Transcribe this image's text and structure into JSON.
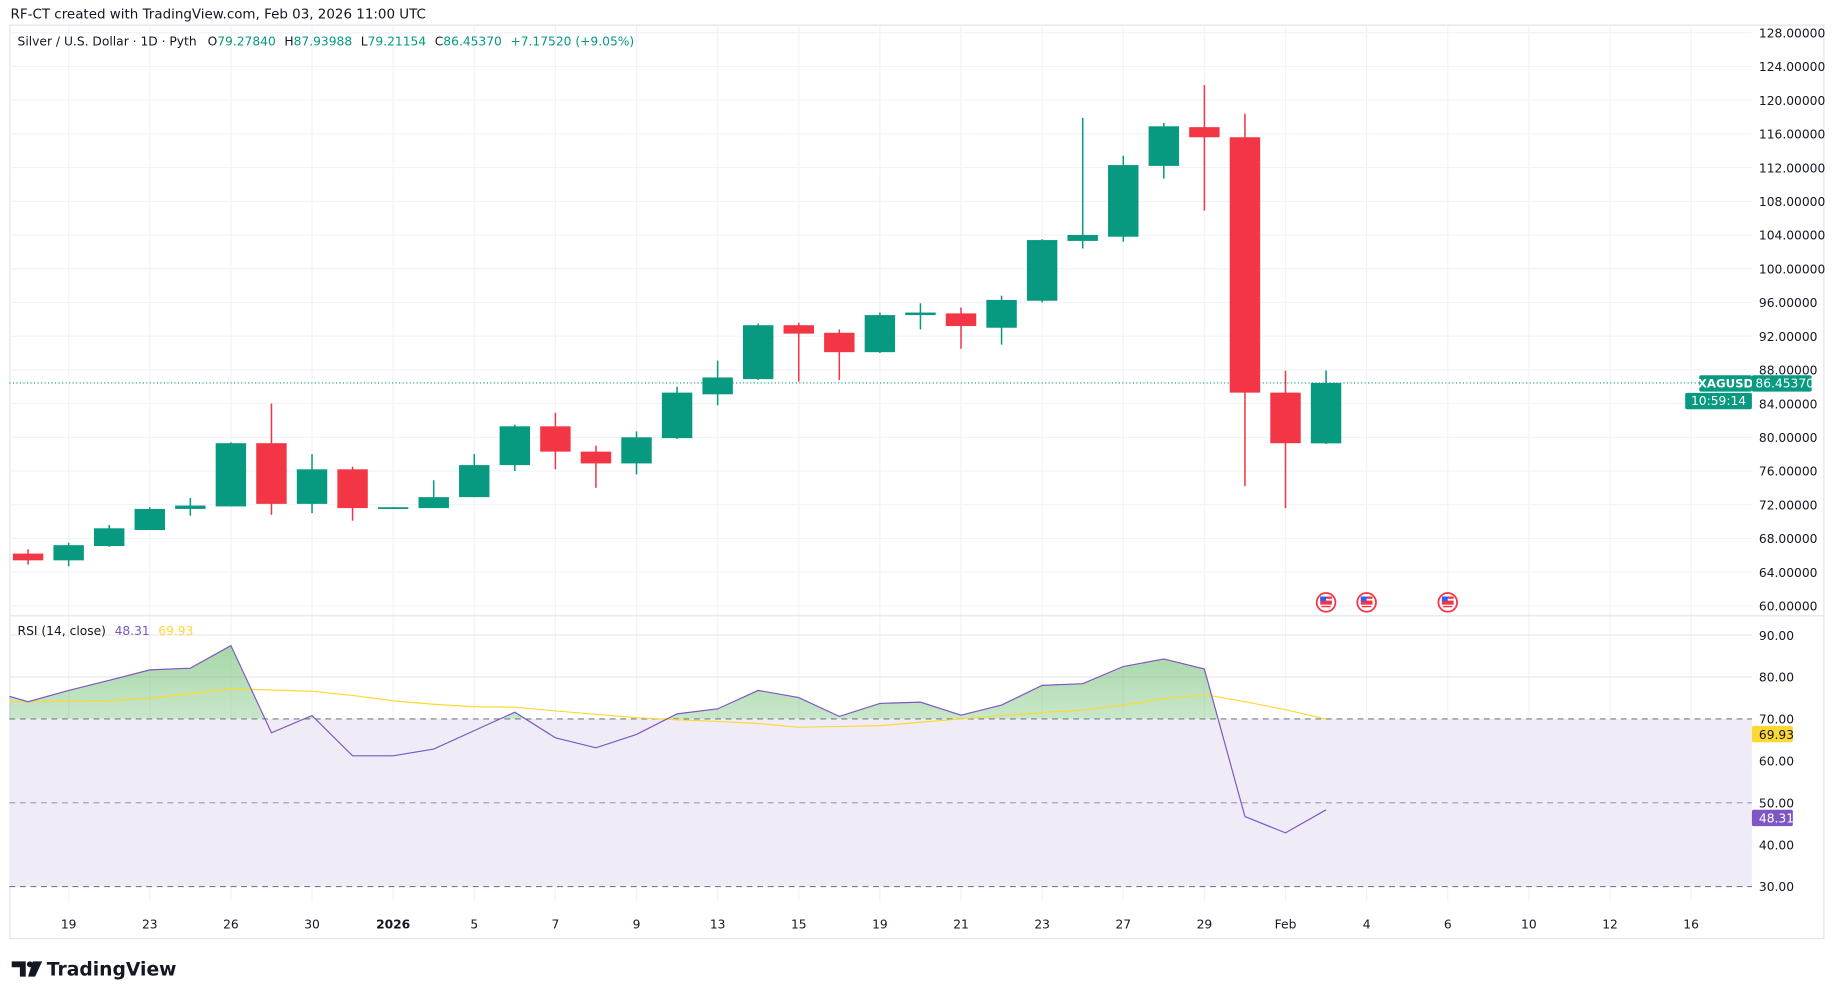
{
  "header": {
    "credit": "RF-CT created with TradingView.com, Feb 03, 2026 11:00 UTC"
  },
  "legend": {
    "symbol": "Silver / U.S. Dollar · 1D · Pyth",
    "o_label": "O",
    "o_value": "79.27840",
    "h_label": "H",
    "h_value": "87.93988",
    "l_label": "L",
    "l_value": "79.21154",
    "c_label": "C",
    "c_value": "86.45370",
    "change": "+7.17520 (+9.05%)"
  },
  "price_label": {
    "ticker": "XAGUSD",
    "price": "86.45370",
    "countdown": "10:59:14"
  },
  "rsi": {
    "title": "RSI (14, close)",
    "value": "48.31",
    "ma_value": "69.93"
  },
  "logo": {
    "text": "TradingView"
  },
  "colors": {
    "up": "#089981",
    "down": "#f23645",
    "rsi": "#7e57c2",
    "rsi_ma": "#fdd835",
    "band": "#efecf7"
  },
  "chart_data": [
    {
      "type": "candlestick",
      "title": "Silver / U.S. Dollar · 1D · Pyth",
      "ylim": [
        60,
        128
      ],
      "y_ticks": [
        "128.00000",
        "124.00000",
        "120.00000",
        "116.00000",
        "112.00000",
        "108.00000",
        "104.00000",
        "100.00000",
        "96.00000",
        "92.00000",
        "88.00000",
        "84.00000",
        "80.00000",
        "76.00000",
        "72.00000",
        "68.00000",
        "64.00000",
        "60.00000"
      ],
      "x_ticks": [
        {
          "label": "19",
          "date": "2025-12-19"
        },
        {
          "label": "23",
          "date": "2025-12-23"
        },
        {
          "label": "26",
          "date": "2025-12-26"
        },
        {
          "label": "30",
          "date": "2025-12-30"
        },
        {
          "label": "2026",
          "date": "2026-01-01"
        },
        {
          "label": "5",
          "date": "2026-01-05"
        },
        {
          "label": "7",
          "date": "2026-01-07"
        },
        {
          "label": "9",
          "date": "2026-01-09"
        },
        {
          "label": "13",
          "date": "2026-01-13"
        },
        {
          "label": "15",
          "date": "2026-01-15"
        },
        {
          "label": "19",
          "date": "2026-01-19"
        },
        {
          "label": "21",
          "date": "2026-01-21"
        },
        {
          "label": "23",
          "date": "2026-01-23"
        },
        {
          "label": "27",
          "date": "2026-01-27"
        },
        {
          "label": "29",
          "date": "2026-01-29"
        },
        {
          "label": "Feb",
          "date": "2026-02-02"
        },
        {
          "label": "4",
          "date": "2026-02-04"
        },
        {
          "label": "6",
          "date": "2026-02-06"
        },
        {
          "label": "10",
          "date": "2026-02-10"
        },
        {
          "label": "12",
          "date": "2026-02-12"
        },
        {
          "label": "16",
          "date": "2026-02-16"
        }
      ],
      "grid": true,
      "last_price": 86.4537,
      "candles": [
        {
          "date": "2025-12-18",
          "o": 66.2,
          "h": 66.7,
          "l": 64.9,
          "c": 65.4
        },
        {
          "date": "2025-12-19",
          "o": 65.4,
          "h": 67.5,
          "l": 64.7,
          "c": 67.2
        },
        {
          "date": "2025-12-22",
          "o": 67.1,
          "h": 69.6,
          "l": 67.0,
          "c": 69.2
        },
        {
          "date": "2025-12-23",
          "o": 69.0,
          "h": 71.7,
          "l": 69.0,
          "c": 71.5
        },
        {
          "date": "2025-12-24",
          "o": 71.5,
          "h": 72.8,
          "l": 70.7,
          "c": 71.9
        },
        {
          "date": "2025-12-26",
          "o": 71.8,
          "h": 79.4,
          "l": 71.8,
          "c": 79.3
        },
        {
          "date": "2025-12-29",
          "o": 79.3,
          "h": 84.0,
          "l": 70.8,
          "c": 72.1
        },
        {
          "date": "2025-12-30",
          "o": 72.1,
          "h": 78.0,
          "l": 71.0,
          "c": 76.2
        },
        {
          "date": "2025-12-31",
          "o": 76.2,
          "h": 76.5,
          "l": 70.1,
          "c": 71.6
        },
        {
          "date": "2026-01-01",
          "o": 71.6,
          "h": 71.7,
          "l": 71.6,
          "c": 71.7
        },
        {
          "date": "2026-01-02",
          "o": 71.6,
          "h": 74.9,
          "l": 71.6,
          "c": 72.9
        },
        {
          "date": "2026-01-05",
          "o": 72.9,
          "h": 78.0,
          "l": 72.9,
          "c": 76.7
        },
        {
          "date": "2026-01-06",
          "o": 76.7,
          "h": 81.5,
          "l": 76.0,
          "c": 81.3
        },
        {
          "date": "2026-01-07",
          "o": 81.3,
          "h": 82.9,
          "l": 76.2,
          "c": 78.3
        },
        {
          "date": "2026-01-08",
          "o": 78.3,
          "h": 79.0,
          "l": 74.0,
          "c": 76.9
        },
        {
          "date": "2026-01-09",
          "o": 76.9,
          "h": 80.7,
          "l": 75.6,
          "c": 80.0
        },
        {
          "date": "2026-01-12",
          "o": 79.9,
          "h": 86.0,
          "l": 79.8,
          "c": 85.3
        },
        {
          "date": "2026-01-13",
          "o": 85.1,
          "h": 89.1,
          "l": 83.8,
          "c": 87.1
        },
        {
          "date": "2026-01-14",
          "o": 86.9,
          "h": 93.5,
          "l": 86.8,
          "c": 93.3
        },
        {
          "date": "2026-01-15",
          "o": 93.3,
          "h": 93.6,
          "l": 86.6,
          "c": 92.3
        },
        {
          "date": "2026-01-16",
          "o": 92.4,
          "h": 92.8,
          "l": 86.8,
          "c": 90.1
        },
        {
          "date": "2026-01-19",
          "o": 90.1,
          "h": 94.8,
          "l": 90.0,
          "c": 94.5
        },
        {
          "date": "2026-01-20",
          "o": 94.5,
          "h": 95.9,
          "l": 92.8,
          "c": 94.8
        },
        {
          "date": "2026-01-21",
          "o": 94.7,
          "h": 95.4,
          "l": 90.5,
          "c": 93.2
        },
        {
          "date": "2026-01-22",
          "o": 93.0,
          "h": 96.8,
          "l": 91.0,
          "c": 96.3
        },
        {
          "date": "2026-01-23",
          "o": 96.2,
          "h": 103.5,
          "l": 96.0,
          "c": 103.4
        },
        {
          "date": "2026-01-26",
          "o": 103.3,
          "h": 117.9,
          "l": 102.4,
          "c": 104.0
        },
        {
          "date": "2026-01-27",
          "o": 103.8,
          "h": 113.4,
          "l": 103.2,
          "c": 112.3
        },
        {
          "date": "2026-01-28",
          "o": 112.2,
          "h": 117.3,
          "l": 110.7,
          "c": 116.9
        },
        {
          "date": "2026-01-29",
          "o": 116.8,
          "h": 121.8,
          "l": 106.9,
          "c": 115.6
        },
        {
          "date": "2026-01-30",
          "o": 115.6,
          "h": 118.4,
          "l": 74.2,
          "c": 85.3
        },
        {
          "date": "2026-02-02",
          "o": 85.3,
          "h": 87.9,
          "l": 71.6,
          "c": 79.3
        },
        {
          "date": "2026-02-03",
          "o": 79.2784,
          "h": 87.93988,
          "l": 79.21154,
          "c": 86.4537
        }
      ],
      "events": [
        {
          "date": "2026-02-03",
          "icon": "us-flag-icon"
        },
        {
          "date": "2026-02-04",
          "icon": "us-flag-icon"
        },
        {
          "date": "2026-02-06",
          "icon": "us-flag-icon"
        }
      ]
    },
    {
      "type": "line",
      "title": "RSI (14, close)",
      "ylim": [
        30,
        90
      ],
      "y_ticks": [
        "90.00",
        "80.00",
        "70.00",
        "60.00",
        "50.00",
        "40.00",
        "30.00"
      ],
      "bands": {
        "upper": 70,
        "middle": 50,
        "lower": 30
      },
      "series": [
        {
          "name": "RSI",
          "values": [
            74.1,
            76.8,
            79.2,
            81.7,
            82.1,
            87.5,
            66.7,
            70.8,
            61.2,
            61.2,
            62.8,
            67.2,
            71.6,
            65.5,
            63.1,
            66.3,
            71.2,
            72.4,
            76.8,
            75.1,
            70.6,
            73.7,
            74.0,
            70.9,
            73.3,
            78.0,
            78.4,
            82.5,
            84.3,
            81.9,
            46.7,
            42.8,
            48.31
          ]
        },
        {
          "name": "RSI-based MA",
          "values": [
            74.1,
            74.3,
            74.4,
            74.9,
            76.0,
            77.2,
            76.9,
            76.6,
            75.6,
            74.3,
            73.5,
            72.9,
            72.8,
            71.9,
            71.1,
            70.3,
            69.8,
            69.4,
            68.9,
            68.0,
            68.2,
            68.4,
            69.2,
            70.0,
            70.8,
            71.5,
            72.1,
            73.3,
            74.8,
            75.8,
            74.1,
            72.2,
            69.93
          ]
        }
      ]
    }
  ]
}
